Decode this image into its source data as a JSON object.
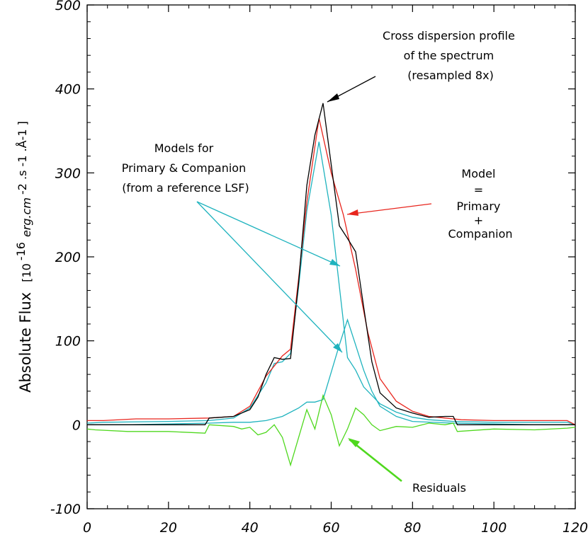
{
  "chart_data": {
    "type": "line",
    "title": "",
    "xlabel": "",
    "ylabel": "Absolute Flux",
    "ylabel_unit_prefix": "[10",
    "ylabel_unit_exp": "-16",
    "ylabel_unit_main": "erg.cm",
    "ylabel_unit_rest": "-2 .s -1 .Å-1 ]",
    "xlim": [
      0,
      120
    ],
    "ylim": [
      -100,
      500
    ],
    "xticks": [
      0,
      20,
      40,
      60,
      80,
      100,
      120
    ],
    "yticks": [
      -100,
      0,
      100,
      200,
      300,
      400,
      500
    ],
    "grid": false,
    "colors": {
      "spectrum": "#000000",
      "model": "#e8261e",
      "components": "#1fb3be",
      "residuals": "#4fd81e"
    },
    "series": [
      {
        "key": "spectrum",
        "x": [
          0,
          29,
          30,
          36,
          38,
          40,
          42,
          44,
          46,
          48,
          50,
          52,
          54,
          56,
          58,
          60,
          62,
          64,
          66,
          68,
          70,
          72,
          76,
          80,
          84,
          88,
          90,
          91,
          100,
          110,
          118,
          120
        ],
        "y": [
          0,
          0,
          8,
          10,
          14,
          18,
          33,
          60,
          80,
          78,
          79,
          170,
          285,
          345,
          383,
          310,
          237,
          222,
          206,
          140,
          75,
          38,
          20,
          14,
          9,
          10,
          10,
          0,
          0,
          0,
          0,
          0
        ]
      },
      {
        "key": "model",
        "x": [
          0,
          4,
          12,
          20,
          30,
          36,
          40,
          44,
          48,
          50,
          52,
          54,
          57,
          60,
          63,
          66,
          69,
          72,
          76,
          80,
          84,
          88,
          92,
          100,
          110,
          118,
          120
        ],
        "y": [
          5,
          5,
          7,
          7,
          8,
          10,
          22,
          58,
          82,
          90,
          175,
          265,
          365,
          300,
          250,
          185,
          110,
          55,
          28,
          16,
          10,
          8,
          6,
          5,
          5,
          5,
          0
        ]
      },
      {
        "key": "primary",
        "x": [
          0,
          4,
          20,
          30,
          36,
          40,
          44,
          46,
          48,
          50,
          52,
          54,
          57,
          60,
          62,
          64,
          66,
          68,
          70,
          72,
          76,
          80,
          84,
          90,
          100,
          110,
          118,
          120
        ],
        "y": [
          2,
          3,
          4,
          5,
          8,
          20,
          50,
          73,
          75,
          85,
          165,
          255,
          337,
          250,
          165,
          80,
          65,
          45,
          35,
          25,
          15,
          9,
          6,
          4,
          3,
          3,
          3,
          0
        ]
      },
      {
        "key": "companion",
        "x": [
          0,
          10,
          20,
          30,
          36,
          40,
          44,
          48,
          52,
          54,
          56,
          58,
          62,
          64,
          66,
          68,
          70,
          72,
          76,
          80,
          90,
          100,
          110,
          120
        ],
        "y": [
          0,
          0,
          1,
          2,
          3,
          3,
          5,
          10,
          20,
          27,
          27,
          30,
          95,
          125,
          95,
          65,
          40,
          22,
          10,
          4,
          2,
          1,
          0,
          0
        ]
      },
      {
        "key": "residuals",
        "x": [
          0,
          2,
          10,
          20,
          29,
          30,
          36,
          38,
          40,
          42,
          44,
          46,
          48,
          50,
          52,
          54,
          56,
          58,
          60,
          62,
          64,
          66,
          68,
          70,
          72,
          76,
          80,
          84,
          88,
          90,
          91,
          100,
          110,
          118,
          120
        ],
        "y": [
          -5,
          -6,
          -8,
          -8,
          -10,
          0,
          -2,
          -5,
          -3,
          -12,
          -9,
          0,
          -15,
          -48,
          -15,
          18,
          -5,
          35,
          12,
          -25,
          -5,
          20,
          12,
          0,
          -7,
          -2,
          -3,
          2,
          0,
          2,
          -8,
          -5,
          -6,
          -4,
          -3
        ]
      }
    ],
    "annotations": [
      {
        "lines": [
          "Cross dispersion profile",
          "of the spectrum",
          "(resampled 8x)"
        ],
        "color": "#000000"
      },
      {
        "lines": [
          "Models for",
          "Primary & Companion",
          "(from a reference LSF)"
        ],
        "color": "#1fb3be"
      },
      {
        "lines": [
          "Model",
          "=",
          "Primary",
          "+",
          "Companion"
        ],
        "color": "#e8261e"
      },
      {
        "lines": [
          "Residuals"
        ],
        "color": "#4fd81e"
      }
    ]
  }
}
